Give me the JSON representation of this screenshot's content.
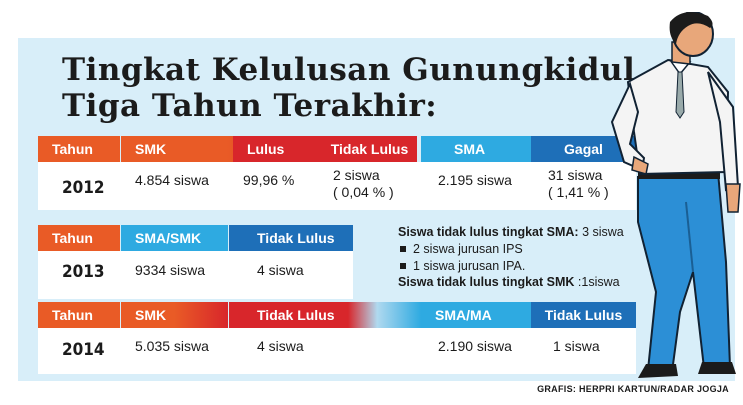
{
  "title": {
    "line1": "Tingkat Kelulusan Gunungkidul",
    "line2": "Tiga Tahun Terakhir:"
  },
  "table2012": {
    "headers": [
      "Tahun",
      "SMK",
      "Lulus",
      "Tidak Lulus",
      "SMA",
      "Gagal"
    ],
    "year": "2012",
    "smk": "4.854 siswa",
    "lulus": "99,96 %",
    "tidak_lulus_1": "2 siswa",
    "tidak_lulus_2": "( 0,04 % )",
    "sma": "2.195 siswa",
    "gagal_1": "31 siswa",
    "gagal_2": "( 1,41 % )"
  },
  "table2013": {
    "headers": [
      "Tahun",
      "SMA/SMK",
      "Tidak Lulus"
    ],
    "year": "2013",
    "sma_smk": "9334 siswa",
    "tidak_lulus": "4 siswa"
  },
  "notes": {
    "line1_bold": "Siswa tidak lulus tingkat SMA:",
    "line1_value": " 3 siswa",
    "bullet1": "2 siswa jurusan IPS",
    "bullet2": "1 siswa jurusan IPA.",
    "line4_bold": "Siswa tidak lulus tingkat SMK",
    "line4_value": " :1siswa"
  },
  "table2014": {
    "headers": [
      "Tahun",
      "SMK",
      "Tidak Lulus",
      "SMA/MA",
      "Tidak Lulus"
    ],
    "year": "2014",
    "smk": "5.035 siswa",
    "tidak_lulus_smk": "4 siswa",
    "sma_ma": "2.190 siswa",
    "tidak_lulus_sma": "1 siswa"
  },
  "credit": "GRAFIS: HERPRI KARTUN/RADAR JOGJA",
  "colors": {
    "red": "#d8262b",
    "orange": "#e95b26",
    "blue": "#1e6fb8",
    "light_blue": "#2eaae1",
    "panel": "#d8eef9"
  }
}
